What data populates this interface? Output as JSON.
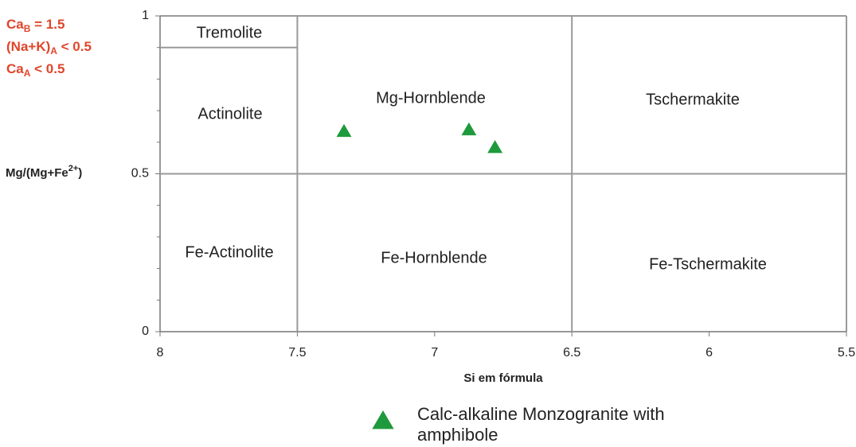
{
  "chart_data": {
    "type": "scatter",
    "x_label": "Si em fórmula",
    "y_label": [
      "Mg/(Mg+Fe",
      "2+",
      ")"
    ],
    "annotations": [
      [
        "Ca",
        "B",
        " = 1.5"
      ],
      [
        "(Na+K)",
        "A",
        " < 0.5"
      ],
      [
        "Ca",
        "A",
        " < 0.5"
      ]
    ],
    "xlim": [
      8,
      5.5
    ],
    "ylim": [
      0,
      1
    ],
    "xticks": [
      8,
      7.5,
      7,
      6.5,
      6,
      5.5
    ],
    "yticks": [
      0,
      0.5,
      1
    ],
    "yminorticks": [
      0.1,
      0.2,
      0.3,
      0.4,
      0.6,
      0.7,
      0.8,
      0.9
    ],
    "field_lines": [
      {
        "x": [
          7.5,
          7.5
        ],
        "y": [
          0,
          1
        ]
      },
      {
        "x": [
          6.5,
          6.5
        ],
        "y": [
          0,
          1
        ]
      },
      {
        "x": [
          8,
          5.5
        ],
        "y": [
          0.5,
          0.5
        ]
      },
      {
        "x": [
          8,
          7.5
        ],
        "y": [
          0.9,
          0.9
        ]
      }
    ],
    "fields": [
      "Tremolite",
      "Actinolite",
      "Mg-Hornblende",
      "Tschermakite",
      "Fe-Actinolite",
      "Fe-Hornblende",
      "Fe-Tschermakite"
    ],
    "x": [
      7.33,
      6.875,
      6.78
    ],
    "series": [
      {
        "name": "Calc-alkaline Monzogranite with amphibole",
        "color": "#1e9a3c",
        "values": [
          0.635,
          0.64,
          0.584
        ]
      }
    ]
  }
}
